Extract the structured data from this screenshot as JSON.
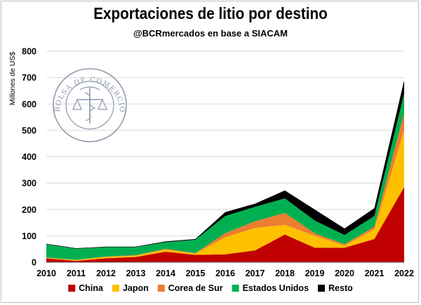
{
  "header": {
    "title": "Exportaciones de litio por destino",
    "subtitle": "@BCRmercados en base a SIACAM"
  },
  "watermark": {
    "text": "BOLSA DE COMERCIO DE ROSARIO",
    "color": "#8f9aae"
  },
  "chart_data": {
    "type": "area",
    "stacked": true,
    "title": "Exportaciones de litio por destino",
    "subtitle": "@BCRmercados en base a SIACAM",
    "xlabel": "",
    "ylabel": "Millones de US$",
    "ylim": [
      0,
      800
    ],
    "yticks": [
      "0",
      "100",
      "200",
      "300",
      "400",
      "500",
      "600",
      "700",
      "800"
    ],
    "categories": [
      "2010",
      "2011",
      "2012",
      "2013",
      "2014",
      "2015",
      "2016",
      "2017",
      "2018",
      "2019",
      "2020",
      "2021",
      "2022"
    ],
    "grid": true,
    "legend_position": "bottom",
    "series": [
      {
        "name": "China",
        "color": "#c00000",
        "values": [
          15,
          5,
          15,
          20,
          40,
          28,
          30,
          45,
          105,
          55,
          55,
          88,
          285
        ]
      },
      {
        "name": "Japon",
        "color": "#ffc000",
        "values": [
          2,
          3,
          5,
          5,
          8,
          5,
          65,
          85,
          37,
          45,
          8,
          37,
          215
        ]
      },
      {
        "name": "Corea de Sur",
        "color": "#ed7d31",
        "values": [
          1,
          1,
          2,
          2,
          3,
          2,
          15,
          25,
          45,
          10,
          5,
          10,
          65
        ]
      },
      {
        "name": "Estados Unidos",
        "color": "#00b050",
        "values": [
          50,
          42,
          35,
          30,
          25,
          50,
          65,
          55,
          55,
          48,
          35,
          40,
          75
        ]
      },
      {
        "name": "Resto",
        "color": "#000000",
        "values": [
          2,
          2,
          2,
          2,
          3,
          3,
          15,
          12,
          30,
          42,
          25,
          30,
          50
        ]
      }
    ]
  }
}
